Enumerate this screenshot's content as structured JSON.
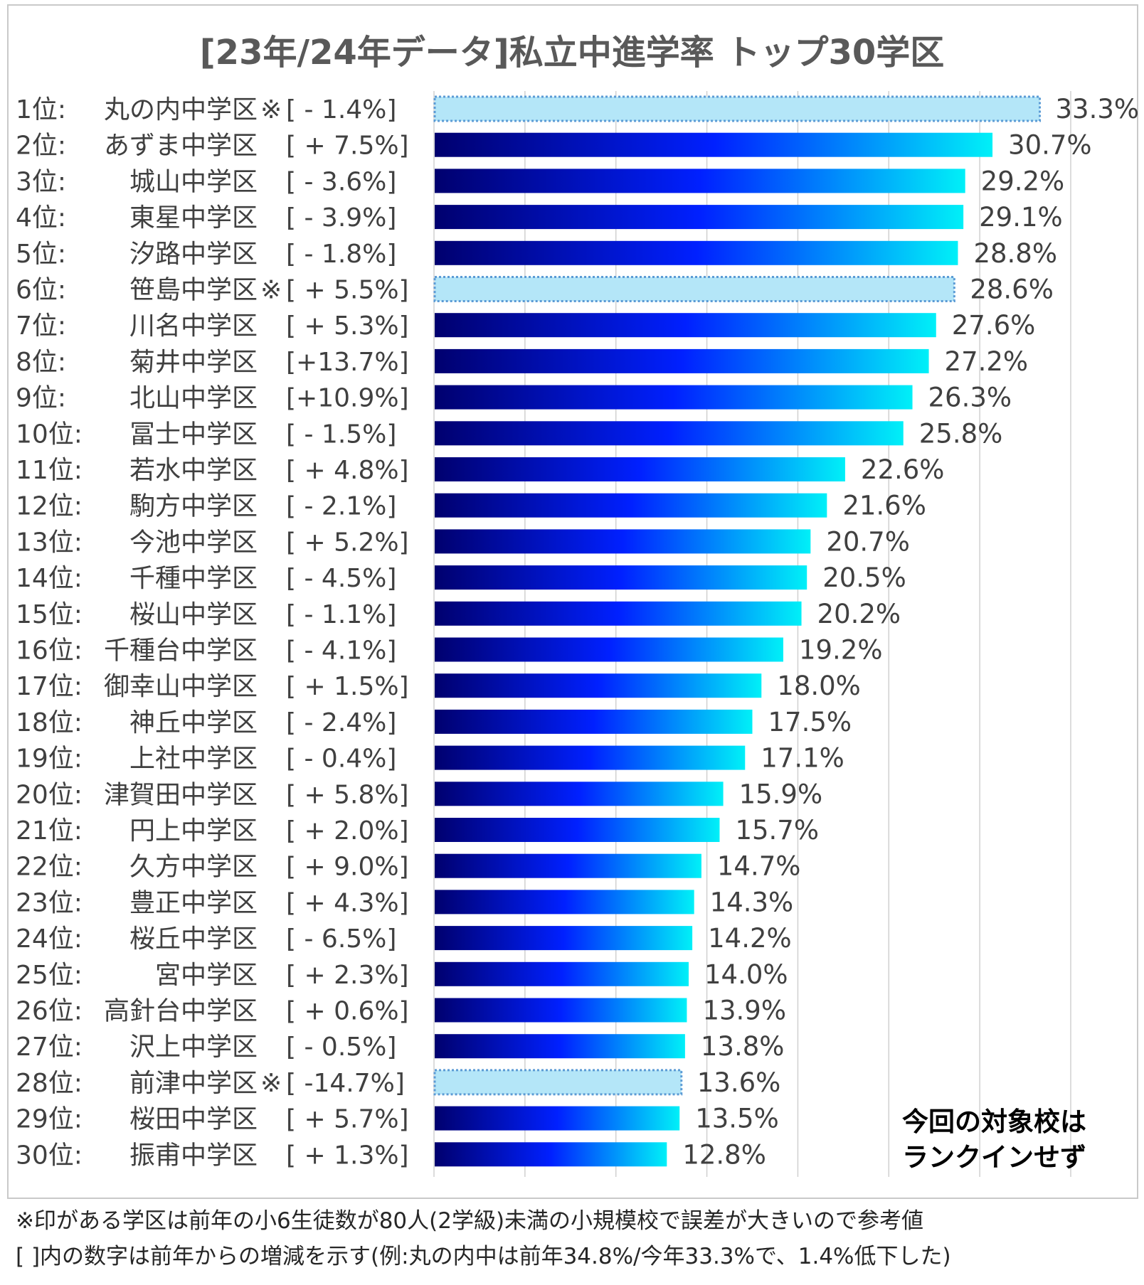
{
  "chart_data": {
    "type": "bar",
    "orientation": "horizontal",
    "title": "[23年/24年データ]私立中進学率 トップ30学区",
    "xlim": [
      0,
      35
    ],
    "grid": true,
    "rows": [
      {
        "rank": "1位:",
        "name": "丸の内中学区",
        "mark": "※",
        "change": "[ - 1.4%]",
        "value": 33.3,
        "value_label": "33.3%",
        "reference": true
      },
      {
        "rank": "2位:",
        "name": "あずま中学区",
        "mark": "",
        "change": "[ + 7.5%]",
        "value": 30.7,
        "value_label": "30.7%",
        "reference": false
      },
      {
        "rank": "3位:",
        "name": "城山中学区",
        "mark": "",
        "change": "[ - 3.6%]",
        "value": 29.2,
        "value_label": "29.2%",
        "reference": false
      },
      {
        "rank": "4位:",
        "name": "東星中学区",
        "mark": "",
        "change": "[ - 3.9%]",
        "value": 29.1,
        "value_label": "29.1%",
        "reference": false
      },
      {
        "rank": "5位:",
        "name": "汐路中学区",
        "mark": "",
        "change": "[ - 1.8%]",
        "value": 28.8,
        "value_label": "28.8%",
        "reference": false
      },
      {
        "rank": "6位:",
        "name": "笹島中学区",
        "mark": "※",
        "change": "[ + 5.5%]",
        "value": 28.6,
        "value_label": "28.6%",
        "reference": true
      },
      {
        "rank": "7位:",
        "name": "川名中学区",
        "mark": "",
        "change": "[ + 5.3%]",
        "value": 27.6,
        "value_label": "27.6%",
        "reference": false
      },
      {
        "rank": "8位:",
        "name": "菊井中学区",
        "mark": "",
        "change": "[+13.7%]",
        "value": 27.2,
        "value_label": "27.2%",
        "reference": false
      },
      {
        "rank": "9位:",
        "name": "北山中学区",
        "mark": "",
        "change": "[+10.9%]",
        "value": 26.3,
        "value_label": "26.3%",
        "reference": false
      },
      {
        "rank": "10位:",
        "name": "冨士中学区",
        "mark": "",
        "change": "[ - 1.5%]",
        "value": 25.8,
        "value_label": "25.8%",
        "reference": false
      },
      {
        "rank": "11位:",
        "name": "若水中学区",
        "mark": "",
        "change": "[ + 4.8%]",
        "value": 22.6,
        "value_label": "22.6%",
        "reference": false
      },
      {
        "rank": "12位:",
        "name": "駒方中学区",
        "mark": "",
        "change": "[ - 2.1%]",
        "value": 21.6,
        "value_label": "21.6%",
        "reference": false
      },
      {
        "rank": "13位:",
        "name": "今池中学区",
        "mark": "",
        "change": "[ + 5.2%]",
        "value": 20.7,
        "value_label": "20.7%",
        "reference": false
      },
      {
        "rank": "14位:",
        "name": "千種中学区",
        "mark": "",
        "change": "[ - 4.5%]",
        "value": 20.5,
        "value_label": "20.5%",
        "reference": false
      },
      {
        "rank": "15位:",
        "name": "桜山中学区",
        "mark": "",
        "change": "[ - 1.1%]",
        "value": 20.2,
        "value_label": "20.2%",
        "reference": false
      },
      {
        "rank": "16位:",
        "name": "千種台中学区",
        "mark": "",
        "change": "[ - 4.1%]",
        "value": 19.2,
        "value_label": "19.2%",
        "reference": false
      },
      {
        "rank": "17位:",
        "name": "御幸山中学区",
        "mark": "",
        "change": "[ + 1.5%]",
        "value": 18.0,
        "value_label": "18.0%",
        "reference": false
      },
      {
        "rank": "18位:",
        "name": "神丘中学区",
        "mark": "",
        "change": "[ - 2.4%]",
        "value": 17.5,
        "value_label": "17.5%",
        "reference": false
      },
      {
        "rank": "19位:",
        "name": "上社中学区",
        "mark": "",
        "change": "[ - 0.4%]",
        "value": 17.1,
        "value_label": "17.1%",
        "reference": false
      },
      {
        "rank": "20位:",
        "name": "津賀田中学区",
        "mark": "",
        "change": "[ + 5.8%]",
        "value": 15.9,
        "value_label": "15.9%",
        "reference": false
      },
      {
        "rank": "21位:",
        "name": "円上中学区",
        "mark": "",
        "change": "[ + 2.0%]",
        "value": 15.7,
        "value_label": "15.7%",
        "reference": false
      },
      {
        "rank": "22位:",
        "name": "久方中学区",
        "mark": "",
        "change": "[ + 9.0%]",
        "value": 14.7,
        "value_label": "14.7%",
        "reference": false
      },
      {
        "rank": "23位:",
        "name": "豊正中学区",
        "mark": "",
        "change": "[ + 4.3%]",
        "value": 14.3,
        "value_label": "14.3%",
        "reference": false
      },
      {
        "rank": "24位:",
        "name": "桜丘中学区",
        "mark": "",
        "change": "[ - 6.5%]",
        "value": 14.2,
        "value_label": "14.2%",
        "reference": false
      },
      {
        "rank": "25位:",
        "name": "宮中学区",
        "mark": "",
        "change": "[ + 2.3%]",
        "value": 14.0,
        "value_label": "14.0%",
        "reference": false
      },
      {
        "rank": "26位:",
        "name": "高針台中学区",
        "mark": "",
        "change": "[ + 0.6%]",
        "value": 13.9,
        "value_label": "13.9%",
        "reference": false
      },
      {
        "rank": "27位:",
        "name": "沢上中学区",
        "mark": "",
        "change": "[ - 0.5%]",
        "value": 13.8,
        "value_label": "13.8%",
        "reference": false
      },
      {
        "rank": "28位:",
        "name": "前津中学区",
        "mark": "※",
        "change": "[ -14.7%]",
        "value": 13.6,
        "value_label": "13.6%",
        "reference": true
      },
      {
        "rank": "29位:",
        "name": "桜田中学区",
        "mark": "",
        "change": "[ + 5.7%]",
        "value": 13.5,
        "value_label": "13.5%",
        "reference": false
      },
      {
        "rank": "30位:",
        "name": "振甫中学区",
        "mark": "",
        "change": "[ + 1.3%]",
        "value": 12.8,
        "value_label": "12.8%",
        "reference": false
      }
    ]
  },
  "note": {
    "line1": "今回の対象校は",
    "line2": "ランクインせず"
  },
  "footnotes": {
    "line1": "※印がある学区は前年の小6生徒数が80人(2学級)未満の小規模校で誤差が大きいので参考値",
    "line2": "[ ]内の数字は前年からの増減を示す(例:丸の内中は前年34.8%/今年33.3%で、1.4%低下した)"
  },
  "colors": {
    "bar_start": "#00006e",
    "bar_mid": "#0020ff",
    "bar_end": "#00f0f8",
    "reference_fill": "#b4e6f8",
    "reference_border": "#5b9bd5",
    "grid": "#d0d0d0",
    "text": "#404040"
  }
}
